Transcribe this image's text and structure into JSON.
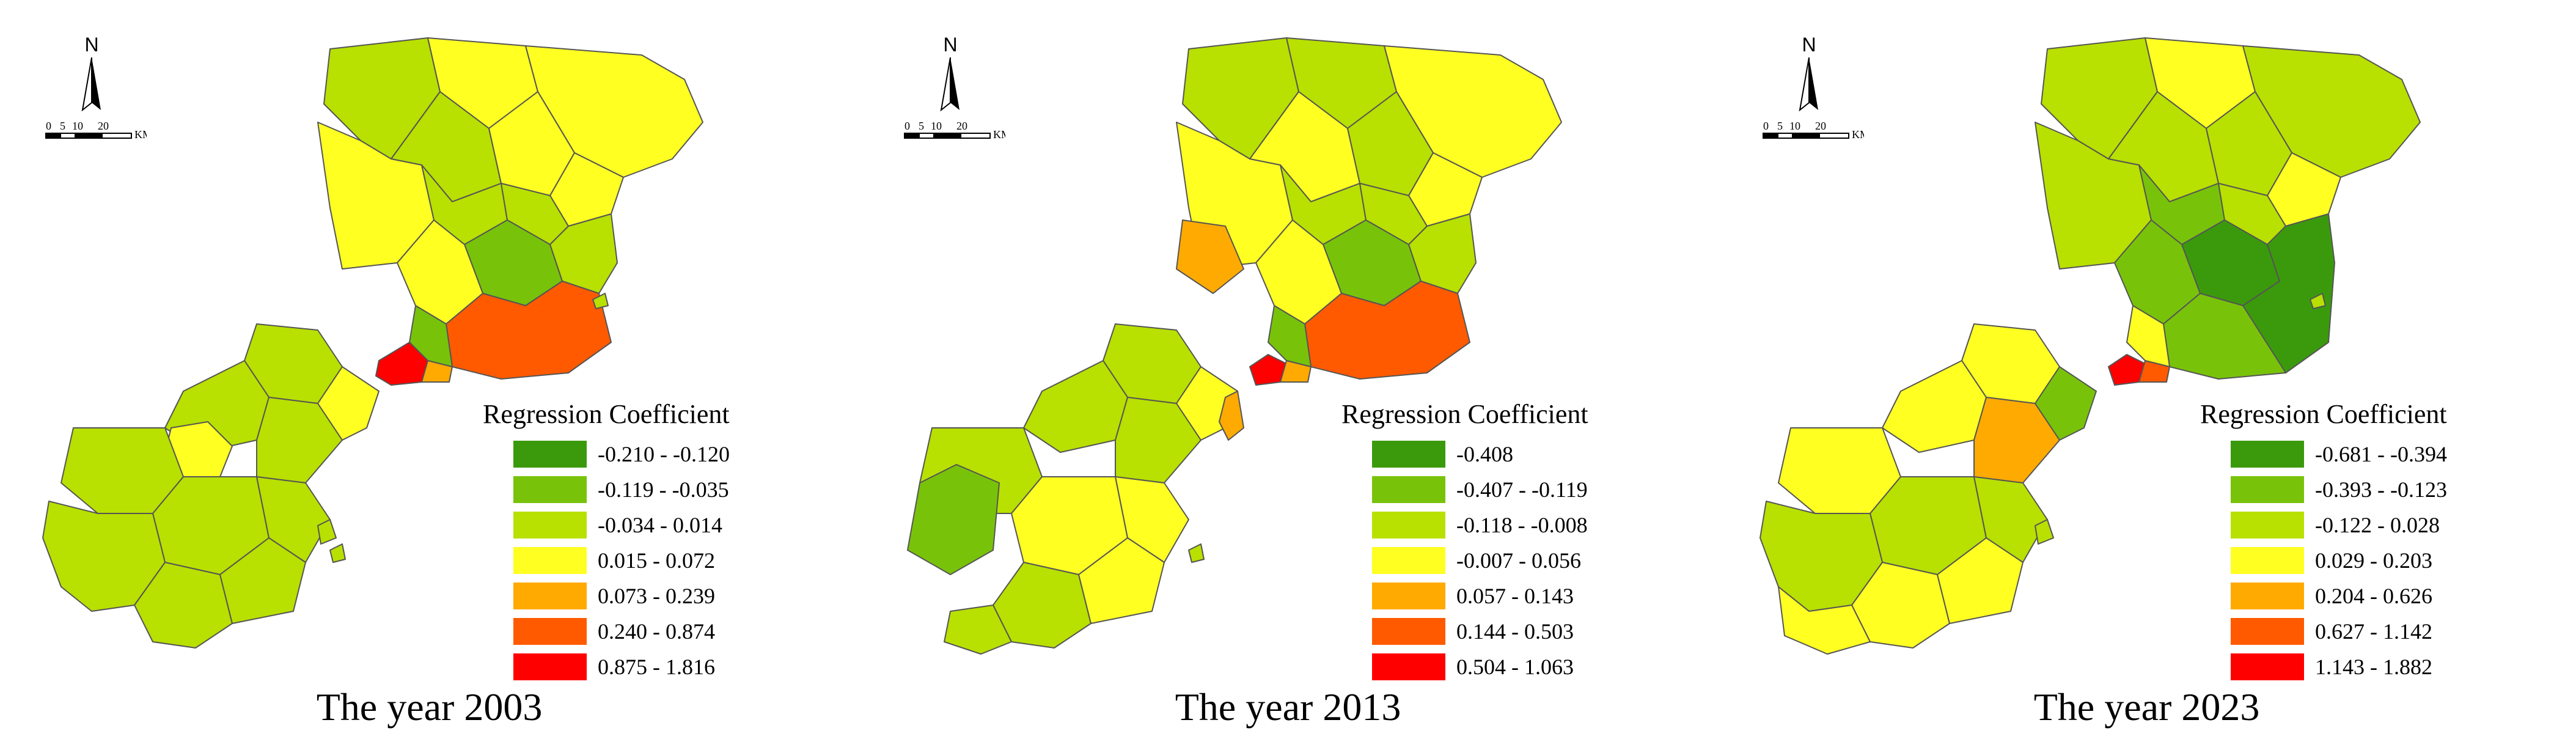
{
  "compass": {
    "north_label": "N",
    "scale_ticks": [
      "0",
      "5",
      "10",
      "20"
    ],
    "scale_unit": "KM"
  },
  "legend_title": "Regression Coefficient",
  "palette": [
    "#3a9a0c",
    "#78c30a",
    "#b8e000",
    "#ffff22",
    "#ffaa00",
    "#ff5a00",
    "#ff0000"
  ],
  "panels": [
    {
      "caption": "The year 2003",
      "legend": [
        {
          "range": "-0.210 - -0.120"
        },
        {
          "range": "-0.119 - -0.035"
        },
        {
          "range": "-0.034 - 0.014"
        },
        {
          "range": "0.015 - 0.072"
        },
        {
          "range": "0.073 - 0.239"
        },
        {
          "range": "0.240 - 0.874"
        },
        {
          "range": "0.875 - 1.816"
        }
      ]
    },
    {
      "caption": "The year 2013",
      "legend": [
        {
          "range": "-0.408"
        },
        {
          "range": "-0.407 - -0.119"
        },
        {
          "range": "-0.118 - -0.008"
        },
        {
          "range": "-0.007 - 0.056"
        },
        {
          "range": "0.057 - 0.143"
        },
        {
          "range": "0.144 - 0.503"
        },
        {
          "range": "0.504 - 1.063"
        }
      ]
    },
    {
      "caption": "The year 2023",
      "legend": [
        {
          "range": "-0.681 - -0.394"
        },
        {
          "range": "-0.393 - -0.123"
        },
        {
          "range": "-0.122 - 0.028"
        },
        {
          "range": "0.029 - 0.203"
        },
        {
          "range": "0.204 - 0.626"
        },
        {
          "range": "0.627 - 1.142"
        },
        {
          "range": "1.143 - 1.882"
        }
      ]
    }
  ]
}
